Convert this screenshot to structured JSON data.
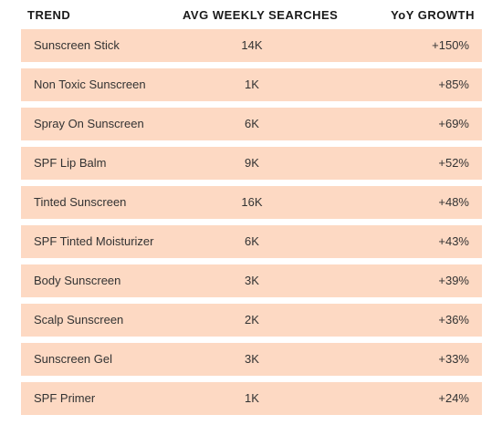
{
  "headers": {
    "trend": "TREND",
    "searches": "AVG WEEKLY SEARCHES",
    "growth": "YoY GROWTH"
  },
  "rows": [
    {
      "trend": "Sunscreen Stick",
      "searches": "14K",
      "growth": "+150%"
    },
    {
      "trend": "Non Toxic Sunscreen",
      "searches": "1K",
      "growth": "+85%"
    },
    {
      "trend": "Spray On Sunscreen",
      "searches": "6K",
      "growth": "+69%"
    },
    {
      "trend": "SPF Lip Balm",
      "searches": "9K",
      "growth": "+52%"
    },
    {
      "trend": "Tinted Sunscreen",
      "searches": "16K",
      "growth": "+48%"
    },
    {
      "trend": "SPF Tinted Moisturizer",
      "searches": "6K",
      "growth": "+43%"
    },
    {
      "trend": "Body Sunscreen",
      "searches": "3K",
      "growth": "+39%"
    },
    {
      "trend": "Scalp Sunscreen",
      "searches": "2K",
      "growth": "+36%"
    },
    {
      "trend": "Sunscreen Gel",
      "searches": "3K",
      "growth": "+33%"
    },
    {
      "trend": "SPF Primer",
      "searches": "1K",
      "growth": "+24%"
    }
  ],
  "colors": {
    "row_background": "#fdd9c3",
    "text": "#333333"
  }
}
